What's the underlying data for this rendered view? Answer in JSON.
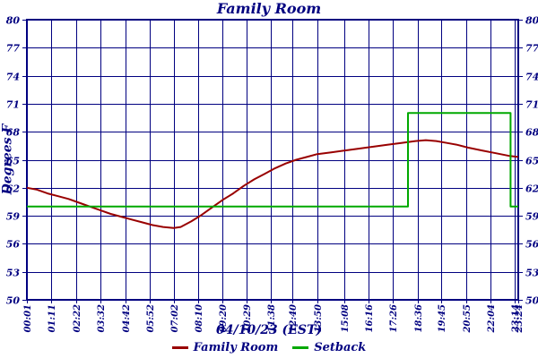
{
  "title": "Family Room",
  "colors": {
    "text": "#000080",
    "axis": "#000080",
    "grid": "#000080",
    "background": "#ffffff",
    "family_room_line": "#990000",
    "setback_line": "#00A800"
  },
  "chart_data": {
    "type": "line",
    "title": "Family Room",
    "xlabel": "04/10/23 (EST)",
    "ylabel": "Degrees F",
    "ylim": [
      50,
      80
    ],
    "grid": true,
    "legend_position": "bottom",
    "y_ticks": [
      80,
      77,
      74,
      71,
      68,
      65,
      62,
      59,
      56,
      53,
      50
    ],
    "x_ticks": [
      "00:01",
      "01:11",
      "02:22",
      "03:32",
      "04:42",
      "05:52",
      "07:02",
      "08:10",
      "09:20",
      "10:29",
      "11:38",
      "12:40",
      "13:50",
      "15:08",
      "16:16",
      "17:26",
      "18:36",
      "19:45",
      "20:55",
      "22:04",
      "23:14",
      "23:24"
    ],
    "series": [
      {
        "name": "Family Room",
        "color": "#990000",
        "points": [
          [
            "00:01",
            62.0
          ],
          [
            "00:30",
            61.8
          ],
          [
            "01:00",
            61.4
          ],
          [
            "01:30",
            61.1
          ],
          [
            "02:00",
            60.8
          ],
          [
            "02:30",
            60.4
          ],
          [
            "03:00",
            60.0
          ],
          [
            "03:30",
            59.6
          ],
          [
            "04:00",
            59.2
          ],
          [
            "04:30",
            58.9
          ],
          [
            "05:00",
            58.6
          ],
          [
            "05:30",
            58.3
          ],
          [
            "06:00",
            58.0
          ],
          [
            "06:30",
            57.8
          ],
          [
            "07:00",
            57.7
          ],
          [
            "07:20",
            57.8
          ],
          [
            "07:50",
            58.4
          ],
          [
            "08:20",
            59.1
          ],
          [
            "08:50",
            59.9
          ],
          [
            "09:20",
            60.7
          ],
          [
            "09:50",
            61.4
          ],
          [
            "10:20",
            62.2
          ],
          [
            "10:50",
            62.9
          ],
          [
            "11:20",
            63.5
          ],
          [
            "11:50",
            64.1
          ],
          [
            "12:20",
            64.6
          ],
          [
            "12:50",
            65.0
          ],
          [
            "13:20",
            65.3
          ],
          [
            "13:50",
            65.6
          ],
          [
            "14:30",
            65.8
          ],
          [
            "15:10",
            66.0
          ],
          [
            "15:50",
            66.2
          ],
          [
            "16:30",
            66.4
          ],
          [
            "17:10",
            66.6
          ],
          [
            "17:50",
            66.8
          ],
          [
            "18:30",
            67.0
          ],
          [
            "19:00",
            67.1
          ],
          [
            "19:30",
            67.0
          ],
          [
            "20:00",
            66.8
          ],
          [
            "20:30",
            66.6
          ],
          [
            "21:00",
            66.3
          ],
          [
            "21:40",
            66.0
          ],
          [
            "22:20",
            65.7
          ],
          [
            "23:00",
            65.4
          ],
          [
            "23:24",
            65.3
          ]
        ]
      },
      {
        "name": "Setback",
        "color": "#00A800",
        "points": [
          [
            "00:01",
            60.0
          ],
          [
            "18:09",
            60.0
          ],
          [
            "18:09",
            70.0
          ],
          [
            "23:02",
            70.0
          ],
          [
            "23:02",
            60.0
          ],
          [
            "23:24",
            60.0
          ]
        ]
      }
    ]
  }
}
